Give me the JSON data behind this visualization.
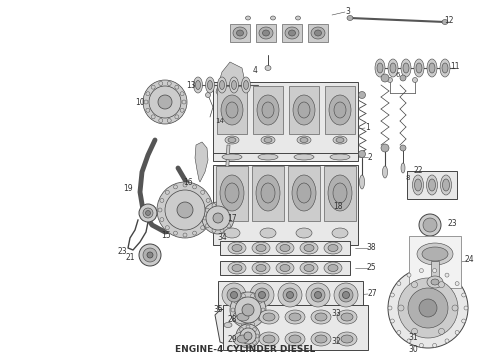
{
  "title": "ENGINE-4 CYLINDER DIESEL",
  "title_fontsize": 6.5,
  "title_color": "#333333",
  "bg_color": "#ffffff",
  "figsize": [
    4.9,
    3.6
  ],
  "dpi": 100,
  "lc": "#444444",
  "fc1": "#e8e8e8",
  "fc2": "#cccccc",
  "fc3": "#b0b0b0",
  "fc4": "#f2f2f2",
  "lw_main": 0.7,
  "lw_thin": 0.4,
  "lw_thick": 1.2
}
